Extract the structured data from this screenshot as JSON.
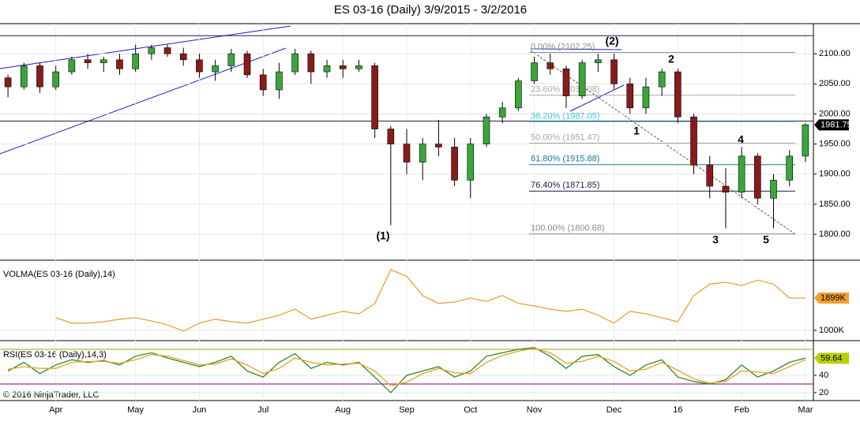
{
  "chart_data": [
    {
      "type": "candlestick",
      "title": "ES 03-16 (Daily)  3/9/2015 - 3/2/2016",
      "categories": [
        null,
        null,
        null,
        "Apr",
        null,
        null,
        null,
        null,
        "May",
        null,
        null,
        null,
        "Jun",
        null,
        null,
        null,
        "Jul",
        null,
        null,
        null,
        null,
        "Aug",
        null,
        null,
        null,
        "Sep",
        null,
        null,
        null,
        "Oct",
        null,
        null,
        null,
        "Nov",
        null,
        null,
        null,
        null,
        "Dec",
        null,
        null,
        null,
        "16",
        null,
        null,
        null,
        "Feb",
        null,
        null,
        null,
        "Mar"
      ],
      "open": [
        2060,
        2045,
        2080,
        2045,
        2070,
        2090,
        2085,
        2090,
        2075,
        2100,
        2110,
        2100,
        2090,
        2070,
        2080,
        2100,
        2065,
        2040,
        2070,
        2100,
        2070,
        2080,
        2075,
        2080,
        1975,
        1950,
        1920,
        1950,
        1945,
        1890,
        1950,
        1995,
        2010,
        2055,
        2085,
        2075,
        2030,
        2085,
        2090,
        2050,
        2010,
        2045,
        2070,
        1995,
        1915,
        1880,
        1870,
        1930,
        1860,
        1890,
        1930
      ],
      "high": [
        2065,
        2085,
        2085,
        2080,
        2095,
        2100,
        2095,
        2100,
        2115,
        2115,
        2115,
        2110,
        2100,
        2090,
        2108,
        2105,
        2075,
        2085,
        2108,
        2105,
        2090,
        2090,
        2090,
        2085,
        1980,
        1975,
        1960,
        1990,
        1960,
        1960,
        2000,
        2020,
        2060,
        2095,
        2100,
        2080,
        2090,
        2100,
        2100,
        2060,
        2060,
        2075,
        2075,
        2000,
        1930,
        1910,
        1945,
        1935,
        1900,
        1940,
        1985
      ],
      "low": [
        2028,
        2040,
        2035,
        2040,
        2065,
        2075,
        2070,
        2065,
        2070,
        2090,
        2095,
        2080,
        2060,
        2055,
        2070,
        2060,
        2030,
        2025,
        2065,
        2050,
        2060,
        2060,
        2070,
        1960,
        1815,
        1900,
        1890,
        1930,
        1880,
        1860,
        1945,
        1985,
        2005,
        2050,
        2065,
        2010,
        2025,
        2070,
        2040,
        2000,
        2000,
        2030,
        1985,
        1900,
        1860,
        1810,
        1860,
        1850,
        1810,
        1880,
        1920
      ],
      "close": [
        2045,
        2080,
        2045,
        2070,
        2090,
        2085,
        2090,
        2075,
        2100,
        2110,
        2100,
        2090,
        2070,
        2080,
        2100,
        2065,
        2040,
        2070,
        2100,
        2070,
        2080,
        2075,
        2080,
        1975,
        1950,
        1920,
        1950,
        1945,
        1890,
        1950,
        1995,
        2010,
        2055,
        2085,
        2075,
        2030,
        2085,
        2090,
        2050,
        2010,
        2045,
        2070,
        1995,
        1915,
        1880,
        1870,
        1930,
        1860,
        1890,
        1930,
        1982
      ],
      "up_color": "#3aa63a",
      "down_color": "#8b1a1a",
      "ylim": [
        1757,
        2150
      ],
      "yticks": [
        {
          "value": 2100,
          "label": "2100.00"
        },
        {
          "value": 2050,
          "label": "2050.00"
        },
        {
          "value": 2000,
          "label": "2000.00"
        },
        {
          "value": 1950,
          "label": "1950.00"
        },
        {
          "value": 1900,
          "label": "1900.00"
        },
        {
          "value": 1850,
          "label": "1850.00"
        },
        {
          "value": 1800,
          "label": "1800.00"
        }
      ],
      "grid": true,
      "last_value": 1981.75,
      "hlines": [
        2130,
        1988
      ],
      "fib_levels": [
        {
          "value": 2102.25,
          "label": "0.00% (2102.25)",
          "color": "#8c8c8c"
        },
        {
          "value": 2031.08,
          "label": "23.60% (2031.08)",
          "color": "#a8a8a8"
        },
        {
          "value": 1987.05,
          "label": "38.20% (1987.05)",
          "color": "#40c8d8"
        },
        {
          "value": 1951.47,
          "label": "50.00% (1951.47)",
          "color": "#a8a8a8"
        },
        {
          "value": 1915.88,
          "label": "61.80% (1915.88)",
          "color": "#1f7a8c"
        },
        {
          "value": 1871.85,
          "label": "76.40% (1871.85)",
          "color": "#202040"
        },
        {
          "value": 1800.68,
          "label": "100.00% (1800.68)",
          "color": "#8c8c8c"
        }
      ],
      "annotations": [
        "(1)",
        "(2)",
        "1",
        "2",
        "3",
        "4",
        "5"
      ]
    },
    {
      "type": "line",
      "label": "VOLMA(ES 03-16 (Daily),14)",
      "values": [
        null,
        null,
        null,
        1350,
        1200,
        1200,
        1240,
        1310,
        1350,
        1260,
        1150,
        980,
        1200,
        1310,
        1240,
        1200,
        1310,
        1420,
        1590,
        1310,
        1420,
        1530,
        1460,
        1750,
        2690,
        2510,
        1970,
        1750,
        1790,
        1900,
        1810,
        1970,
        1750,
        1680,
        1590,
        1530,
        1590,
        1420,
        1200,
        1530,
        1460,
        1350,
        1240,
        1970,
        2290,
        2340,
        2250,
        2400,
        2290,
        1900,
        1900
      ],
      "color": "#f0a030",
      "ylim": [
        800,
        2890
      ],
      "yticks": [
        {
          "value": 1000,
          "label": "1000K"
        }
      ],
      "last_value": {
        "value": 1899,
        "label": "1899K"
      }
    },
    {
      "type": "line",
      "label": "RSI(ES 03-16 (Daily),14,3)",
      "series": [
        {
          "color": "#2e8b22",
          "values": [
            45,
            55,
            42,
            52,
            58,
            55,
            57,
            52,
            62,
            66,
            60,
            55,
            50,
            55,
            62,
            45,
            38,
            55,
            65,
            48,
            55,
            52,
            55,
            38,
            20,
            40,
            45,
            50,
            38,
            45,
            62,
            66,
            70,
            72,
            62,
            48,
            62,
            64,
            50,
            40,
            52,
            58,
            38,
            33,
            30,
            35,
            52,
            38,
            45,
            55,
            60
          ]
        },
        {
          "color": "#e8a020",
          "values": [
            47,
            50,
            48,
            48,
            55,
            56,
            56,
            54,
            58,
            64,
            62,
            57,
            52,
            53,
            59,
            52,
            42,
            48,
            60,
            55,
            52,
            53,
            54,
            45,
            28,
            32,
            42,
            48,
            43,
            42,
            55,
            63,
            68,
            71,
            66,
            54,
            56,
            62,
            56,
            45,
            47,
            55,
            46,
            36,
            31,
            33,
            45,
            44,
            42,
            50,
            58
          ]
        }
      ],
      "ylim": [
        13.6,
        75.5
      ],
      "yticks": [
        20,
        40
      ],
      "last_value": 59.64,
      "levels": [
        {
          "value": 70,
          "color": "#a0a020"
        },
        {
          "value": 30,
          "color": "#800080"
        }
      ],
      "footer": "© 2016 NinjaTrader, LLC"
    }
  ]
}
